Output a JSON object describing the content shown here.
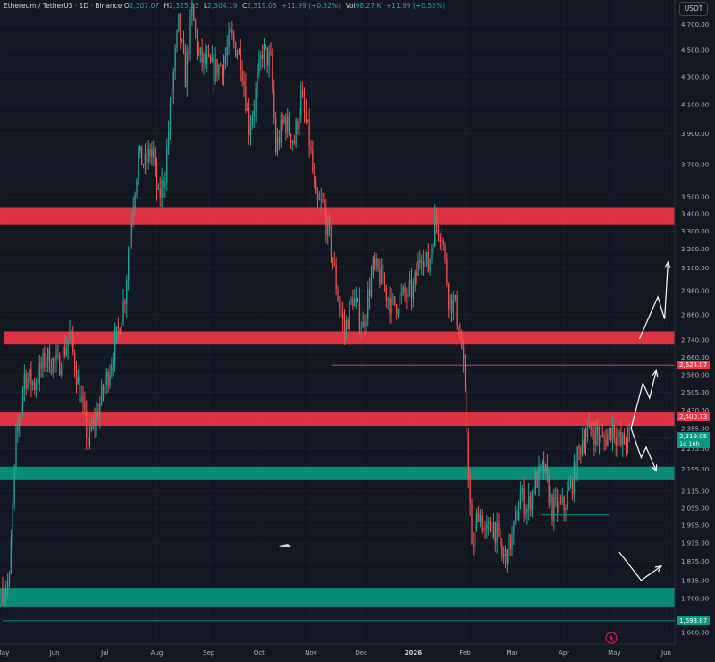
{
  "header": {
    "symbol": "Ethereum / TetherUS · 1D · Binance",
    "open_label": "O",
    "open": "2,307.07",
    "high_label": "H",
    "high": "2,325.33",
    "low_label": "L",
    "low": "2,304.19",
    "close_label": "C",
    "close": "2,319.05",
    "change": "+11.99 (+0.52%)",
    "volume_label": "Vol",
    "volume": "98.27 K",
    "volume_change": "+11.99 (+0.52%)"
  },
  "unit": "USDT",
  "colors": {
    "up": "#26a69a",
    "down": "#ef5350",
    "resistance_zone": "#f23645",
    "support_zone": "#089981",
    "background": "#131722"
  },
  "price_tags": {
    "level_1": "2,624.07",
    "level_2": "2,400.73",
    "current": "2,319.05",
    "countdown": "1d 16h",
    "level_3": "1,693.87"
  },
  "chart_data": {
    "type": "candlestick",
    "title": "",
    "xlabel": "",
    "ylabel": "",
    "y_scale": "log",
    "ylim": [
      1640,
      4800
    ],
    "y_ticks": [
      4700,
      4500,
      4300,
      4100,
      3900,
      3700,
      3500,
      3400,
      3300,
      3200,
      3100,
      2980,
      2860,
      2740,
      2660,
      2580,
      2505,
      2430,
      2355,
      2275,
      2195,
      2115,
      2055,
      1995,
      1935,
      1875,
      1815,
      1760,
      1700,
      1660
    ],
    "y_tick_labels": [
      "4,700.00",
      "4,500.00",
      "4,300.00",
      "4,100.00",
      "3,900.00",
      "3,700.00",
      "3,500.00",
      "3,400.00",
      "3,300.00",
      "3,200.00",
      "3,100.00",
      "2,980.00",
      "2,860.00",
      "2,740.00",
      "2,660.00",
      "2,580.00",
      "2,505.00",
      "2,430.00",
      "2,355.00",
      "2,275.00",
      "2,195.00",
      "2,115.00",
      "2,055.00",
      "1,995.00",
      "1,935.00",
      "1,875.00",
      "1,815.00",
      "1,760.00",
      "1,700.00",
      "1,660.00"
    ],
    "x_labels": [
      "May",
      "Jun",
      "Jul",
      "Aug",
      "Sep",
      "Oct",
      "Nov",
      "Dec",
      "2026",
      "Feb",
      "Mar",
      "Apr",
      "May",
      "Jun"
    ],
    "x_label_dates": [
      "2025-05-01",
      "2025-06-01",
      "2025-07-01",
      "2025-08-01",
      "2025-09-01",
      "2025-10-01",
      "2025-11-01",
      "2025-12-01",
      "2026-01-01",
      "2026-02-01",
      "2026-03-01",
      "2026-04-01",
      "2026-05-01",
      "2026-06-01"
    ],
    "date_range": [
      "2025-05-01",
      "2026-06-05"
    ],
    "last_date": "2026-05-10",
    "closes_anchor": [
      [
        "2025-05-01",
        1790
      ],
      [
        "2025-05-05",
        1810
      ],
      [
        "2025-05-09",
        2300
      ],
      [
        "2025-05-14",
        2580
      ],
      [
        "2025-05-20",
        2540
      ],
      [
        "2025-05-27",
        2660
      ],
      [
        "2025-06-03",
        2620
      ],
      [
        "2025-06-10",
        2760
      ],
      [
        "2025-06-15",
        2550
      ],
      [
        "2025-06-21",
        2300
      ],
      [
        "2025-06-27",
        2430
      ],
      [
        "2025-07-03",
        2590
      ],
      [
        "2025-07-09",
        2780
      ],
      [
        "2025-07-13",
        2960
      ],
      [
        "2025-07-17",
        3400
      ],
      [
        "2025-07-21",
        3750
      ],
      [
        "2025-07-25",
        3700
      ],
      [
        "2025-07-29",
        3800
      ],
      [
        "2025-08-02",
        3480
      ],
      [
        "2025-08-06",
        3650
      ],
      [
        "2025-08-10",
        4200
      ],
      [
        "2025-08-14",
        4700
      ],
      [
        "2025-08-18",
        4300
      ],
      [
        "2025-08-22",
        4800
      ],
      [
        "2025-08-26",
        4450
      ],
      [
        "2025-08-30",
        4400
      ],
      [
        "2025-09-04",
        4350
      ],
      [
        "2025-09-10",
        4400
      ],
      [
        "2025-09-14",
        4600
      ],
      [
        "2025-09-20",
        4450
      ],
      [
        "2025-09-25",
        3950
      ],
      [
        "2025-09-28",
        4100
      ],
      [
        "2025-10-03",
        4500
      ],
      [
        "2025-10-08",
        4400
      ],
      [
        "2025-10-11",
        3800
      ],
      [
        "2025-10-16",
        4000
      ],
      [
        "2025-10-22",
        3850
      ],
      [
        "2025-10-26",
        4150
      ],
      [
        "2025-10-31",
        3850
      ],
      [
        "2025-11-04",
        3450
      ],
      [
        "2025-11-08",
        3450
      ],
      [
        "2025-11-13",
        3200
      ],
      [
        "2025-11-17",
        2950
      ],
      [
        "2025-11-21",
        2780
      ],
      [
        "2025-11-26",
        2950
      ],
      [
        "2025-12-02",
        2800
      ],
      [
        "2025-12-08",
        3100
      ],
      [
        "2025-12-13",
        3050
      ],
      [
        "2025-12-19",
        2900
      ],
      [
        "2025-12-26",
        2950
      ],
      [
        "2026-01-01",
        2980
      ],
      [
        "2026-01-06",
        3200
      ],
      [
        "2026-01-10",
        3100
      ],
      [
        "2026-01-14",
        3350
      ],
      [
        "2026-01-18",
        3300
      ],
      [
        "2026-01-22",
        2950
      ],
      [
        "2026-01-26",
        2900
      ],
      [
        "2026-01-30",
        2700
      ],
      [
        "2026-02-02",
        2350
      ],
      [
        "2026-02-05",
        1900
      ],
      [
        "2026-02-09",
        2050
      ],
      [
        "2026-02-13",
        1960
      ],
      [
        "2026-02-18",
        2000
      ],
      [
        "2026-02-24",
        1880
      ],
      [
        "2026-03-01",
        1950
      ],
      [
        "2026-03-06",
        2100
      ],
      [
        "2026-03-10",
        2050
      ],
      [
        "2026-03-15",
        2150
      ],
      [
        "2026-03-20",
        2200
      ],
      [
        "2026-03-25",
        2050
      ],
      [
        "2026-04-01",
        2060
      ],
      [
        "2026-04-06",
        2150
      ],
      [
        "2026-04-12",
        2320
      ],
      [
        "2026-04-18",
        2350
      ],
      [
        "2026-04-24",
        2300
      ],
      [
        "2026-04-30",
        2360
      ],
      [
        "2026-05-05",
        2290
      ],
      [
        "2026-05-10",
        2319.05
      ]
    ],
    "zones": [
      {
        "name": "",
        "from": 3340,
        "to": 3440,
        "kind": "resistance",
        "x_end": "right-edge"
      },
      {
        "name": "",
        "from": 2718,
        "to": 2780,
        "kind": "resistance",
        "x_end": "right-edge"
      },
      {
        "name": "",
        "from": 2365,
        "to": 2420,
        "kind": "resistance",
        "x_end": "right-edge"
      },
      {
        "name": "",
        "from": 2158,
        "to": 2205,
        "kind": "support",
        "x_end": "right-edge"
      },
      {
        "name": "",
        "from": 1736,
        "to": 1792,
        "kind": "support",
        "x_end": "right-edge"
      }
    ],
    "lines": [
      {
        "price": 2624.07,
        "from": "2025-11-14",
        "to": "right-edge",
        "color": "#f23645"
      },
      {
        "price": 2030,
        "from": "2026-03-18",
        "to": "2026-04-28",
        "color": "#089981"
      },
      {
        "price": 1693.87,
        "from": "2025-05-01",
        "to": "right-edge",
        "color": "#089981"
      }
    ],
    "projection_paths": [
      [
        [
          "2026-05-16",
          2745
        ],
        [
          "2026-05-27",
          2950
        ],
        [
          "2026-05-31",
          2840
        ],
        [
          "2026-06-02",
          3130
        ]
      ],
      [
        [
          "2026-05-11",
          2355
        ],
        [
          "2026-05-18",
          2545
        ],
        [
          "2026-05-22",
          2480
        ],
        [
          "2026-05-26",
          2600
        ]
      ],
      [
        [
          "2026-05-11",
          2355
        ],
        [
          "2026-05-17",
          2240
        ],
        [
          "2026-05-20",
          2280
        ],
        [
          "2026-05-26",
          2190
        ]
      ],
      [
        [
          "2026-05-04",
          1905
        ],
        [
          "2026-05-17",
          1815
        ],
        [
          "2026-05-21",
          1830
        ],
        [
          "2026-05-29",
          1860
        ]
      ]
    ]
  }
}
